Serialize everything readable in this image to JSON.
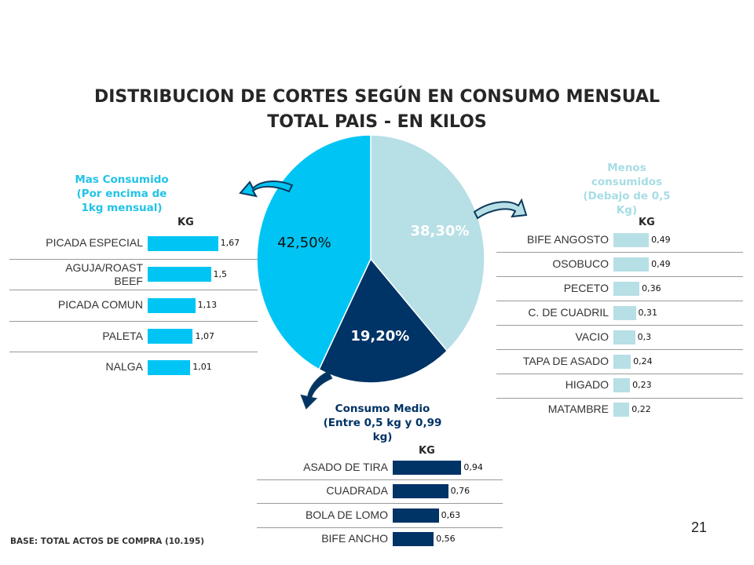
{
  "title_line1": "DISTRIBUCION DE CORTES SEGÚN EN CONSUMO MENSUAL",
  "title_line2": "TOTAL PAIS - EN KILOS",
  "footer": "BASE: TOTAL ACTOS DE COMPRA (10.195)",
  "page_number": "21",
  "colors": {
    "high": "#00c5f4",
    "medium": "#003366",
    "low": "#b7dfe6",
    "high_text": "#22c3e6",
    "low_text": "#a7dde5"
  },
  "chart_data": [
    {
      "type": "pie",
      "categories": [
        "Mas Consumido",
        "Consumo Medio",
        "Menos consumidos"
      ],
      "values": [
        42.5,
        19.2,
        38.3
      ],
      "labels": [
        "42,50%",
        "19,20%",
        "38,30%"
      ],
      "colors": [
        "#00c5f4",
        "#003366",
        "#b7dfe6"
      ]
    },
    {
      "type": "bar",
      "title_lines": [
        "Mas Consumido",
        "(Por encima de",
        "1kg mensual)"
      ],
      "unit": "KG",
      "categories": [
        "PICADA ESPECIAL",
        "AGUJA/ROAST BEEF",
        "PICADA COMUN",
        "PALETA",
        "NALGA"
      ],
      "values": [
        1.67,
        1.5,
        1.13,
        1.07,
        1.01
      ],
      "value_labels": [
        "1,67",
        "1,5",
        "1,13",
        "1,07",
        "1,01"
      ],
      "color": "#00c5f4"
    },
    {
      "type": "bar",
      "title_lines": [
        "Consumo Medio",
        "(Entre 0,5 kg y 0,99",
        "kg)"
      ],
      "unit": "KG",
      "categories": [
        "ASADO DE TIRA",
        "CUADRADA",
        "BOLA DE LOMO",
        "BIFE ANCHO"
      ],
      "values": [
        0.94,
        0.76,
        0.63,
        0.56
      ],
      "value_labels": [
        "0,94",
        "0,76",
        "0,63",
        "0,56"
      ],
      "color": "#003366"
    },
    {
      "type": "bar",
      "title_lines": [
        "Menos",
        "consumidos",
        "(Debajo de 0,5",
        "Kg)"
      ],
      "unit": "KG",
      "categories": [
        "BIFE ANGOSTO",
        "OSOBUCO",
        "PECETO",
        "C. DE CUADRIL",
        "VACIO",
        "TAPA DE ASADO",
        "HIGADO",
        "MATAMBRE"
      ],
      "values": [
        0.49,
        0.49,
        0.36,
        0.31,
        0.3,
        0.24,
        0.23,
        0.22
      ],
      "value_labels": [
        "0,49",
        "0,49",
        "0,36",
        "0,31",
        "0,3",
        "0,24",
        "0,23",
        "0,22"
      ],
      "color": "#b7dfe6"
    }
  ]
}
